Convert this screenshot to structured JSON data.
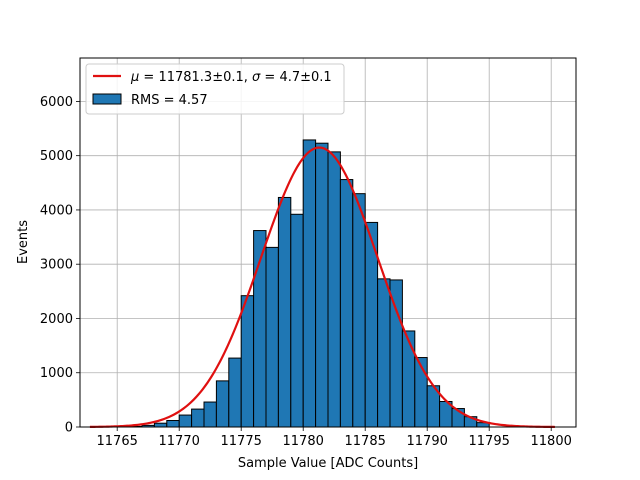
{
  "chart_data": {
    "type": "bar",
    "title": "",
    "xlabel": "Sample Value [ADC Counts]",
    "ylabel": "Events",
    "xlim": [
      11762,
      11802
    ],
    "ylim": [
      0,
      6800
    ],
    "grid": true,
    "legend_position": "top-left",
    "x_ticks": [
      11765,
      11770,
      11775,
      11780,
      11785,
      11790,
      11795,
      11800
    ],
    "y_ticks": [
      0,
      1000,
      2000,
      3000,
      4000,
      5000,
      6000
    ],
    "bin_width": 1,
    "bin_left_edges": [
      11766,
      11767,
      11768,
      11769,
      11770,
      11771,
      11772,
      11773,
      11774,
      11775,
      11776,
      11777,
      11778,
      11779,
      11780,
      11781,
      11782,
      11783,
      11784,
      11785,
      11786,
      11787,
      11788,
      11789,
      11790,
      11791,
      11792,
      11793,
      11794
    ],
    "values": [
      10,
      30,
      70,
      120,
      220,
      330,
      460,
      850,
      1270,
      2420,
      3620,
      3310,
      4230,
      3920,
      5290,
      5230,
      5070,
      4560,
      4300,
      3770,
      2730,
      2710,
      1770,
      1280,
      760,
      470,
      340,
      190,
      80
    ],
    "series": [
      {
        "name": "RMS = 4.57",
        "kind": "histogram",
        "color": "#1f77b4"
      },
      {
        "name": "μ = 11781.3±0.1, σ = 4.7±0.1",
        "kind": "gaussian-fit",
        "color": "#e01010",
        "mu": 11781.3,
        "sigma": 4.7,
        "amplitude": 5150,
        "x_range": [
          11762.8,
          11800.3
        ]
      }
    ],
    "legend": {
      "fit_mu_symbol": "μ",
      "fit_mu_value": " = 11781.3±0.1, ",
      "fit_sigma_symbol": "σ",
      "fit_sigma_value": " = 4.7±0.1",
      "hist_label": "RMS = 4.57"
    }
  }
}
